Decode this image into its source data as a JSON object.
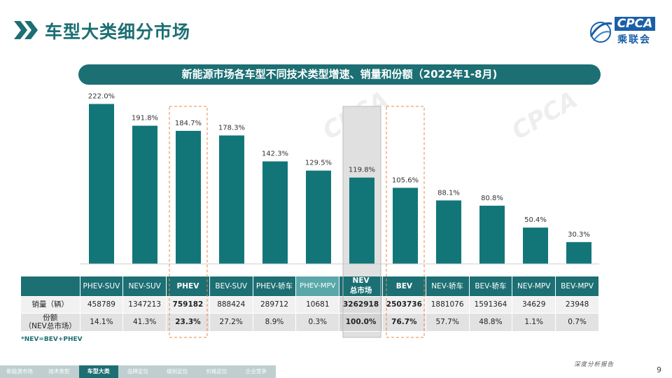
{
  "header": {
    "title": "车型大类细分市场",
    "logo_text": "CPCA",
    "logo_cn": "乘联会"
  },
  "banner": {
    "text": "新能源市场各车型不同技术类型增速、销量和份额（2022年1-8月)"
  },
  "chart_data": {
    "type": "bar",
    "title": "新能源市场各车型不同技术类型增速、销量和份额（2022年1-8月)",
    "categories": [
      "PHEV-SUV",
      "NEV-SUV",
      "PHEV",
      "BEV-SUV",
      "PHEV-轿车",
      "PHEV-MPV",
      "NEV总市场",
      "BEV",
      "NEV-轿车",
      "BEV-轿车",
      "NEV-MPV",
      "BEV-MPV"
    ],
    "values": [
      222.0,
      191.8,
      184.7,
      178.3,
      142.3,
      129.5,
      119.8,
      105.6,
      88.1,
      80.8,
      50.4,
      30.3
    ],
    "value_labels": [
      "222.0%",
      "191.8%",
      "184.7%",
      "178.3%",
      "142.3%",
      "129.5%",
      "119.8%",
      "105.6%",
      "88.1%",
      "80.8%",
      "50.4%",
      "30.3%"
    ],
    "unit": "%",
    "ylim": [
      0,
      240
    ],
    "highlighted": [
      "PHEV",
      "NEV总市场",
      "BEV"
    ],
    "bar_color": "#127678"
  },
  "table": {
    "header_row": [
      "",
      "PHEV-SUV",
      "NEV-SUV",
      "PHEV",
      "BEV-SUV",
      "PHEV-轿车",
      "PHEV-MPV",
      "NEV\n总市场",
      "BEV",
      "NEV-轿车",
      "BEV-轿车",
      "NEV-MPV",
      "BEV-MPV"
    ],
    "sales_label": "销量（辆）",
    "sales": [
      "458789",
      "1347213",
      "759182",
      "888424",
      "289712",
      "10681",
      "3262918",
      "2503736",
      "1881076",
      "1591364",
      "34629",
      "23948"
    ],
    "share_label_1": "份额",
    "share_label_2": "（NEV总市场）",
    "share": [
      "14.1%",
      "41.3%",
      "23.3%",
      "27.2%",
      "8.9%",
      "0.3%",
      "100.0%",
      "76.7%",
      "57.7%",
      "48.8%",
      "1.1%",
      "0.7%"
    ]
  },
  "footnote": "*NEV=BEV+PHEV",
  "nav": {
    "items": [
      "新能源市场",
      "技术类型",
      "车型大类",
      "品牌定位",
      "级别定位",
      "价格定位",
      "企业竞争"
    ],
    "active_index": 2
  },
  "footer": {
    "text": "深度分析报告",
    "page_number": "9"
  },
  "colors": {
    "accent": "#1c6f73",
    "bar": "#127678",
    "highlight_border": "#e9884a",
    "nev_shade": "#e0e0e0"
  }
}
